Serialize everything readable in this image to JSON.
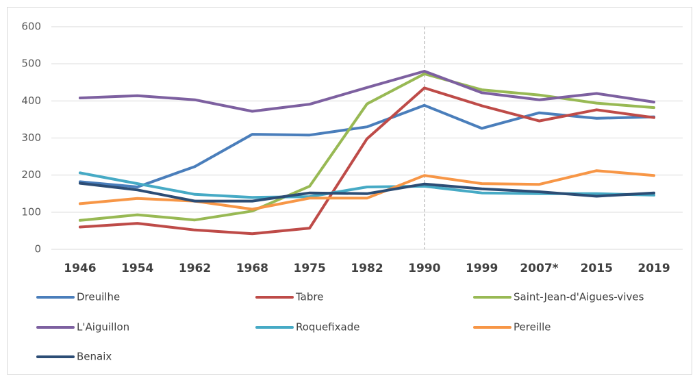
{
  "chart_data": {
    "type": "line",
    "categories": [
      "1946",
      "1954",
      "1962",
      "1968",
      "1975",
      "1982",
      "1990",
      "1999",
      "2007*",
      "2015",
      "2019"
    ],
    "series": [
      {
        "name": "Dreuilhe",
        "color": "#4a7ebb",
        "values": [
          182,
          168,
          223,
          310,
          308,
          330,
          388,
          326,
          368,
          353,
          357
        ]
      },
      {
        "name": "Tabre",
        "color": "#be4b48",
        "values": [
          60,
          70,
          52,
          42,
          57,
          298,
          435,
          387,
          346,
          376,
          355
        ]
      },
      {
        "name": "Saint-Jean-d'Aigues-vives",
        "color": "#98b954",
        "values": [
          78,
          93,
          79,
          103,
          170,
          392,
          473,
          430,
          416,
          394,
          382
        ]
      },
      {
        "name": "L'Aiguillon",
        "color": "#7d60a0",
        "values": [
          408,
          414,
          403,
          372,
          391,
          436,
          480,
          422,
          403,
          420,
          397
        ]
      },
      {
        "name": "Roquefixade",
        "color": "#46aac5",
        "values": [
          206,
          177,
          148,
          140,
          142,
          168,
          170,
          152,
          150,
          150,
          146
        ]
      },
      {
        "name": "Pereille",
        "color": "#f79646",
        "values": [
          123,
          137,
          130,
          108,
          138,
          138,
          199,
          177,
          175,
          212,
          199
        ]
      },
      {
        "name": "Benaix",
        "color": "#2c4d75",
        "values": [
          178,
          160,
          130,
          130,
          152,
          150,
          176,
          163,
          155,
          143,
          152
        ]
      }
    ],
    "ylim": [
      0,
      600
    ],
    "yticks": [
      0,
      100,
      200,
      300,
      400,
      500,
      600
    ],
    "grid": true,
    "vline": "1990",
    "legend": "bottom"
  }
}
